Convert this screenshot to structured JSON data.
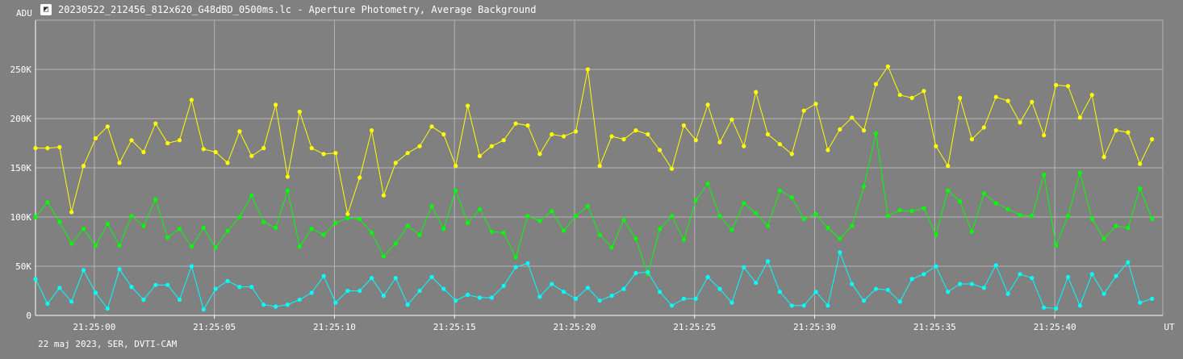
{
  "window": {
    "title": "20230522_212456_812x620_G48dBD_0500ms.lc - Aperture Photometry, Average Background",
    "icon": "lightcurve-app-icon"
  },
  "footer": {
    "text": "22 maj 2023, SER, DVTI-CAM"
  },
  "chart_data": {
    "type": "line",
    "title": "",
    "ylabel": "ADU",
    "xlabel": "UT",
    "y_ticks": [
      "0",
      "50K",
      "100K",
      "150K",
      "200K",
      "250K"
    ],
    "y_tick_values": [
      0,
      50000,
      100000,
      150000,
      200000,
      250000
    ],
    "ylim": [
      0,
      300000
    ],
    "x_ticks": [
      "21:25:00",
      "21:25:05",
      "21:25:10",
      "21:25:15",
      "21:25:20",
      "21:25:25",
      "21:25:30",
      "21:25:35",
      "21:25:40"
    ],
    "x_tick_values": [
      0,
      5,
      10,
      15,
      20,
      25,
      30,
      35,
      40
    ],
    "xlim": [
      -2.45,
      44.5
    ],
    "grid": true,
    "x_start": -2.45,
    "x_step": 0.5,
    "colors": {
      "background": "#808080",
      "grid": "#b4b4b4",
      "axis": "#ffffff"
    },
    "series": [
      {
        "color": "#ffff00",
        "values": [
          170000,
          170000,
          171000,
          105000,
          152000,
          180000,
          192000,
          155000,
          178000,
          166000,
          195000,
          175000,
          178000,
          219000,
          169000,
          166000,
          155000,
          187000,
          162000,
          170000,
          214000,
          141000,
          207000,
          170000,
          164000,
          165000,
          103000,
          140000,
          188000,
          122000,
          155000,
          165000,
          172000,
          192000,
          184000,
          152000,
          213000,
          162000,
          172000,
          178000,
          195000,
          193000,
          164000,
          184000,
          182000,
          187000,
          250000,
          152000,
          182000,
          179000,
          188000,
          184000,
          168000,
          149000,
          193000,
          178000,
          214000,
          176000,
          199000,
          172000,
          227000,
          184000,
          174000,
          164000,
          208000,
          215000,
          168000,
          189000,
          201000,
          188000,
          235000,
          253000,
          224000,
          221000,
          228000,
          172000,
          152000,
          221000,
          179000,
          191000,
          222000,
          218000,
          196000,
          217000,
          183000,
          234000,
          233000,
          201000,
          224000,
          161000,
          188000,
          186000,
          154000,
          179000
        ]
      },
      {
        "color": "#00ff00",
        "values": [
          100000,
          115000,
          95000,
          73000,
          88000,
          71000,
          93000,
          71000,
          101000,
          91000,
          118000,
          79000,
          88000,
          70000,
          89000,
          69000,
          86000,
          100000,
          122000,
          95000,
          89000,
          127000,
          70000,
          88000,
          82000,
          94000,
          99000,
          98000,
          84000,
          60000,
          73000,
          91000,
          82000,
          111000,
          88000,
          127000,
          94000,
          108000,
          85000,
          84000,
          59000,
          101000,
          96000,
          106000,
          86000,
          101000,
          111000,
          82000,
          69000,
          97000,
          78000,
          42000,
          88000,
          101000,
          77000,
          117000,
          134000,
          101000,
          87000,
          114000,
          104000,
          91000,
          127000,
          120000,
          98000,
          103000,
          89000,
          78000,
          91000,
          131000,
          185000,
          101000,
          107000,
          106000,
          109000,
          82000,
          127000,
          116000,
          85000,
          124000,
          114000,
          108000,
          102000,
          101000,
          143000,
          71000,
          101000,
          145000,
          98000,
          78000,
          91000,
          89000,
          129000,
          98000
        ]
      },
      {
        "color": "#00ffff",
        "values": [
          37000,
          12000,
          28000,
          14000,
          46000,
          23000,
          7000,
          47000,
          29000,
          16000,
          31000,
          31000,
          16000,
          50000,
          6000,
          27000,
          35000,
          29000,
          29000,
          11000,
          9000,
          11000,
          16000,
          23000,
          40000,
          13000,
          25000,
          25000,
          38000,
          20000,
          38000,
          11000,
          25000,
          39000,
          27000,
          15000,
          21000,
          18000,
          18000,
          30000,
          49000,
          53000,
          19000,
          32000,
          24000,
          17000,
          28000,
          15000,
          20000,
          27000,
          43000,
          44000,
          24000,
          10000,
          17000,
          17000,
          39000,
          27000,
          13000,
          49000,
          33000,
          55000,
          24000,
          10000,
          10000,
          24000,
          10000,
          64000,
          32000,
          15000,
          27000,
          26000,
          14000,
          37000,
          42000,
          50000,
          24000,
          32000,
          32000,
          28000,
          51000,
          22000,
          42000,
          38000,
          8000,
          7000,
          39000,
          10000,
          42000,
          22000,
          40000,
          54000,
          13000,
          17000
        ]
      }
    ]
  }
}
